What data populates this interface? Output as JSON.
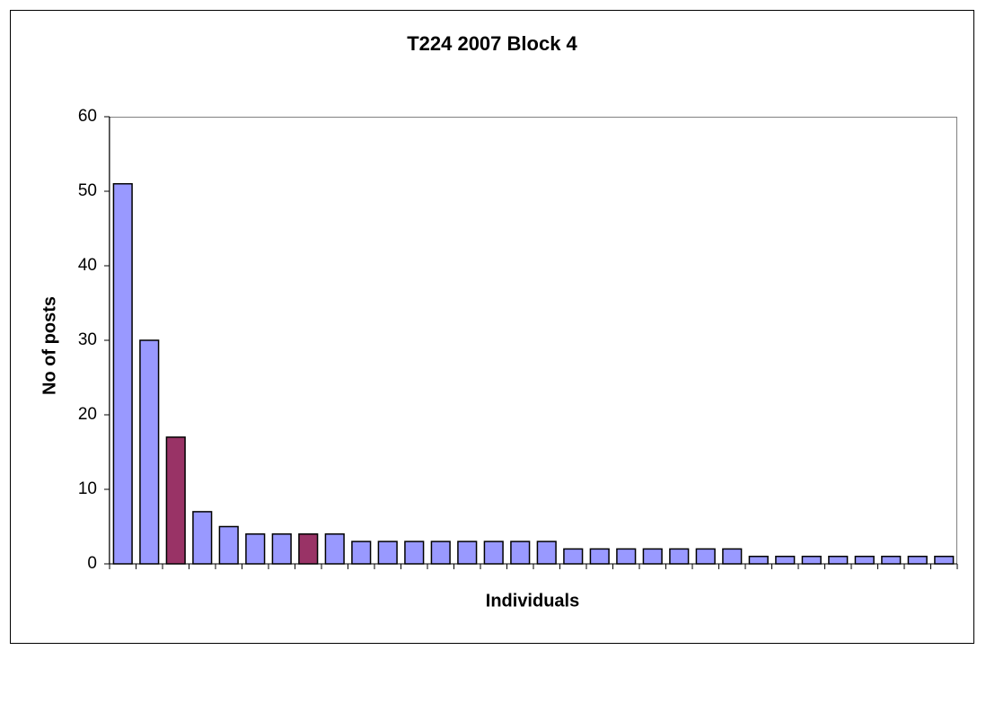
{
  "chart_data": {
    "type": "bar",
    "title": "T224 2007 Block 4",
    "x_label": "Individuals",
    "y_label": "No of posts",
    "categories": [
      null,
      null,
      null,
      null,
      null,
      null,
      null,
      null,
      null,
      null,
      null,
      null,
      null,
      null,
      null,
      null,
      null,
      null,
      null,
      null,
      null,
      null,
      null,
      null,
      null,
      null,
      null,
      null,
      null,
      null,
      null,
      null
    ],
    "values": [
      51,
      30,
      17,
      7,
      5,
      4,
      4,
      4,
      4,
      3,
      3,
      3,
      3,
      3,
      3,
      3,
      3,
      2,
      2,
      2,
      2,
      2,
      2,
      2,
      1,
      1,
      1,
      1,
      1,
      1,
      1,
      1
    ],
    "colors": [
      "#9999ff",
      "#9999ff",
      "#993366",
      "#9999ff",
      "#9999ff",
      "#9999ff",
      "#9999ff",
      "#993366",
      "#9999ff",
      "#9999ff",
      "#9999ff",
      "#9999ff",
      "#9999ff",
      "#9999ff",
      "#9999ff",
      "#9999ff",
      "#9999ff",
      "#9999ff",
      "#9999ff",
      "#9999ff",
      "#9999ff",
      "#9999ff",
      "#9999ff",
      "#9999ff",
      "#9999ff",
      "#9999ff",
      "#9999ff",
      "#9999ff",
      "#9999ff",
      "#9999ff",
      "#9999ff",
      "#9999ff"
    ],
    "ylim": [
      0,
      60
    ],
    "yticks": [
      0,
      10,
      20,
      30,
      40,
      50,
      60
    ],
    "grid": false
  }
}
